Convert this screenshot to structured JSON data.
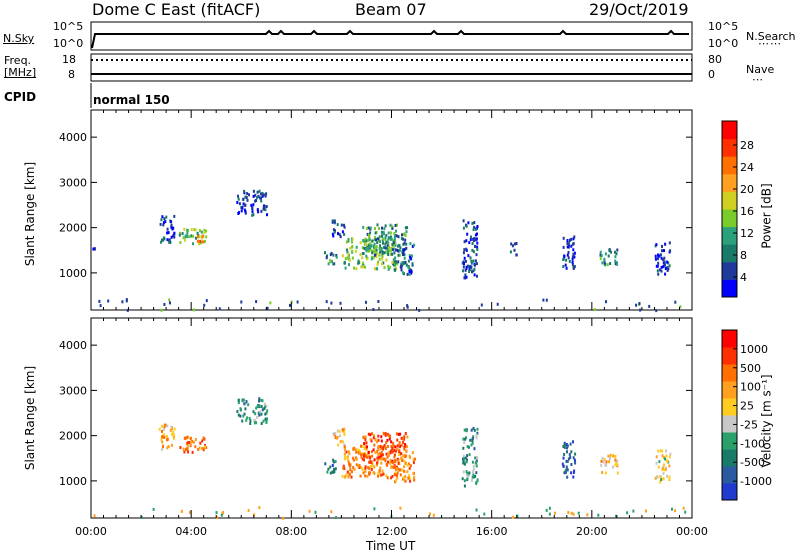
{
  "header": {
    "title": "Dome C East (fitACF)",
    "beam": "Beam 07",
    "date": "29/Oct/2019"
  },
  "top_panels": {
    "nsky_label": "N.Sky",
    "nsearch_label": "N.Search",
    "freq_label_line1": "Freq.",
    "freq_label_line2": "[MHz]",
    "nave_label": "Nave",
    "cpid_label": "CPID",
    "cpid_value": "normal 150",
    "noise_left_ticks": [
      "10^5",
      "10^0"
    ],
    "noise_right_ticks": [
      "10^5",
      "10^0"
    ],
    "freq_ticks": [
      "18",
      "8"
    ],
    "nave_ticks": [
      "80",
      "0"
    ]
  },
  "chart_data": [
    {
      "type": "heatmap",
      "name": "Power",
      "ylabel": "Slant Range [km]",
      "xlabel": "",
      "ylim": [
        180,
        4600
      ],
      "xlim": [
        0,
        24
      ],
      "y_ticks": [
        "4000",
        "3000",
        "2000",
        "1000"
      ],
      "colorbar_label": "Power [dB]",
      "colorbar_ticks": [
        "28",
        "24",
        "20",
        "16",
        "12",
        "8",
        "4"
      ],
      "colorbar_colors": [
        "#0000ff",
        "#1f3a9a",
        "#1a7a6a",
        "#2aa17a",
        "#7acc2a",
        "#d0d020",
        "#ffa020",
        "#ff7000",
        "#ff3000",
        "#ff0000"
      ],
      "clusters": [
        {
          "t": 0.1,
          "r0": 1500,
          "r1": 1600,
          "level": 0
        },
        {
          "t0": 2.7,
          "t1": 3.3,
          "r0": 1700,
          "r1": 2300,
          "level": 1
        },
        {
          "t0": 3.5,
          "t1": 4.6,
          "r0": 1650,
          "r1": 2000,
          "level": 4
        },
        {
          "t0": 4.2,
          "t1": 4.6,
          "r0": 1700,
          "r1": 1850,
          "level": 7
        },
        {
          "t0": 5.8,
          "t1": 7.0,
          "r0": 2300,
          "r1": 2850,
          "level": 1
        },
        {
          "t0": 9.3,
          "t1": 9.8,
          "r0": 1200,
          "r1": 1500,
          "level": 3
        },
        {
          "t0": 9.6,
          "t1": 10.1,
          "r0": 1800,
          "r1": 2200,
          "level": 1
        },
        {
          "t0": 10.0,
          "t1": 12.2,
          "r0": 1100,
          "r1": 1800,
          "level": 4
        },
        {
          "t0": 10.8,
          "t1": 12.6,
          "r0": 1400,
          "r1": 2100,
          "level": 3
        },
        {
          "t0": 12.0,
          "t1": 12.9,
          "r0": 1000,
          "r1": 1700,
          "level": 2
        },
        {
          "t0": 14.8,
          "t1": 15.4,
          "r0": 900,
          "r1": 2200,
          "level": 1
        },
        {
          "t0": 16.7,
          "t1": 17.0,
          "r0": 1400,
          "r1": 1700,
          "level": 1
        },
        {
          "t0": 18.8,
          "t1": 19.3,
          "r0": 1100,
          "r1": 1900,
          "level": 1
        },
        {
          "t0": 20.3,
          "t1": 21.0,
          "r0": 1200,
          "r1": 1600,
          "level": 3
        },
        {
          "t0": 22.5,
          "t1": 23.1,
          "r0": 1000,
          "r1": 1700,
          "level": 1
        }
      ]
    },
    {
      "type": "heatmap",
      "name": "Velocity",
      "ylabel": "Slant Range [km]",
      "xlabel": "Time UT",
      "ylim": [
        180,
        4600
      ],
      "xlim": [
        0,
        24
      ],
      "y_ticks": [
        "4000",
        "3000",
        "2000",
        "1000"
      ],
      "x_ticks": [
        "00:00",
        "04:00",
        "08:00",
        "12:00",
        "16:00",
        "20:00",
        "00:00"
      ],
      "colorbar_label": "Velocity [m s⁻¹]",
      "colorbar_ticks": [
        "1000",
        "500",
        "100",
        "25",
        "-25",
        "-100",
        "-500",
        "-1000"
      ],
      "colorbar_colors": [
        "#1f3acc",
        "#2a5aa0",
        "#1a7a6a",
        "#2aa16a",
        "#c8c8c8",
        "#ffcc20",
        "#ffa020",
        "#ff7000",
        "#ff3000",
        "#ff0000"
      ],
      "clusters": [
        {
          "t0": 2.7,
          "t1": 3.3,
          "r0": 1700,
          "r1": 2300,
          "level": 6
        },
        {
          "t0": 3.5,
          "t1": 4.6,
          "r0": 1650,
          "r1": 2000,
          "level": 7
        },
        {
          "t0": 5.8,
          "t1": 7.0,
          "r0": 2300,
          "r1": 2850,
          "level": 3
        },
        {
          "t0": 9.3,
          "t1": 9.8,
          "r0": 1200,
          "r1": 1500,
          "level": 2
        },
        {
          "t0": 9.6,
          "t1": 10.1,
          "r0": 1800,
          "r1": 2200,
          "level": 6
        },
        {
          "t0": 10.0,
          "t1": 12.2,
          "r0": 1100,
          "r1": 1800,
          "level": 7
        },
        {
          "t0": 10.8,
          "t1": 12.6,
          "r0": 1400,
          "r1": 2100,
          "level": 8
        },
        {
          "t0": 12.0,
          "t1": 12.9,
          "r0": 1000,
          "r1": 1700,
          "level": 7
        },
        {
          "t0": 14.8,
          "t1": 15.4,
          "r0": 900,
          "r1": 2200,
          "level": 3
        },
        {
          "t0": 18.8,
          "t1": 19.3,
          "r0": 1100,
          "r1": 1900,
          "level": 1
        },
        {
          "t0": 20.3,
          "t1": 21.0,
          "r0": 1200,
          "r1": 1600,
          "level": 6
        },
        {
          "t0": 22.5,
          "t1": 23.1,
          "r0": 1000,
          "r1": 1700,
          "level": 5
        }
      ]
    }
  ]
}
